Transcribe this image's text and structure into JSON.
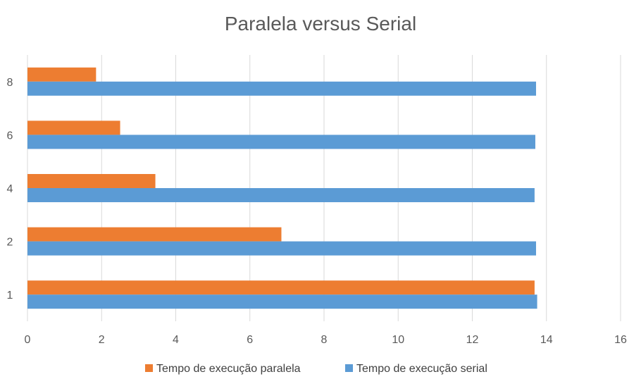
{
  "chart_data": {
    "type": "bar",
    "orientation": "horizontal",
    "title": "Paralela versus Serial",
    "categories": [
      "1",
      "2",
      "4",
      "6",
      "8"
    ],
    "series": [
      {
        "name": "Tempo de execução serial",
        "color": "#5b9bd5",
        "values": [
          13.75,
          13.72,
          13.68,
          13.7,
          13.72
        ]
      },
      {
        "name": "Tempo de execução paralela",
        "color": "#ed7d31",
        "values": [
          13.68,
          6.85,
          3.45,
          2.5,
          1.85
        ]
      }
    ],
    "xlim": [
      0,
      16
    ],
    "xticks": [
      0,
      2,
      4,
      6,
      8,
      10,
      12,
      14,
      16
    ],
    "grid": "vertical",
    "legend": {
      "position": "bottom",
      "order": [
        "Tempo de execução paralela",
        "Tempo de execução serial"
      ]
    }
  }
}
